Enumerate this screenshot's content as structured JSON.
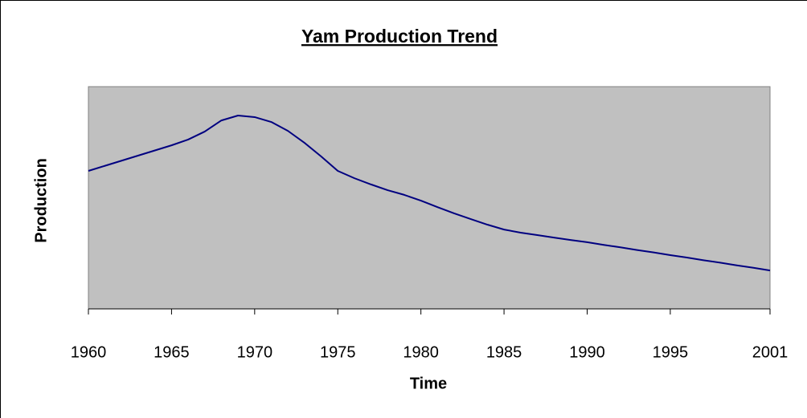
{
  "chart_data": {
    "type": "line",
    "title": "Yam Production Trend",
    "x_label": "Time",
    "y_label": "Production",
    "x": [
      1960,
      1961,
      1962,
      1963,
      1964,
      1965,
      1966,
      1967,
      1968,
      1969,
      1970,
      1971,
      1972,
      1973,
      1974,
      1975,
      1976,
      1977,
      1978,
      1979,
      1980,
      1981,
      1982,
      1983,
      1984,
      1985,
      1986,
      1987,
      1988,
      1989,
      1990,
      1991,
      1992,
      1993,
      1994,
      1995,
      1996,
      1997,
      1998,
      1999,
      2000,
      2001
    ],
    "series": [
      {
        "name": "Production",
        "color": "#000080",
        "values": [
          62.1,
          64.4,
          66.7,
          69.0,
          71.3,
          73.6,
          76.2,
          79.8,
          84.8,
          87.0,
          86.3,
          84.1,
          80.1,
          74.7,
          68.6,
          62.1,
          58.8,
          56.0,
          53.4,
          51.3,
          48.7,
          45.8,
          43.0,
          40.4,
          37.9,
          35.7,
          34.3,
          33.2,
          32.1,
          31.0,
          30.0,
          28.8,
          27.7,
          26.5,
          25.4,
          24.2,
          23.1,
          21.9,
          20.8,
          19.6,
          18.5,
          17.3
        ]
      }
    ],
    "xlim": [
      1960,
      2001
    ],
    "xticks": [
      1960,
      1965,
      1970,
      1975,
      1980,
      1985,
      1990,
      1995,
      2001
    ],
    "ylim": [
      0,
      100
    ],
    "plot_background": "#c0c0c0",
    "grid": false
  }
}
